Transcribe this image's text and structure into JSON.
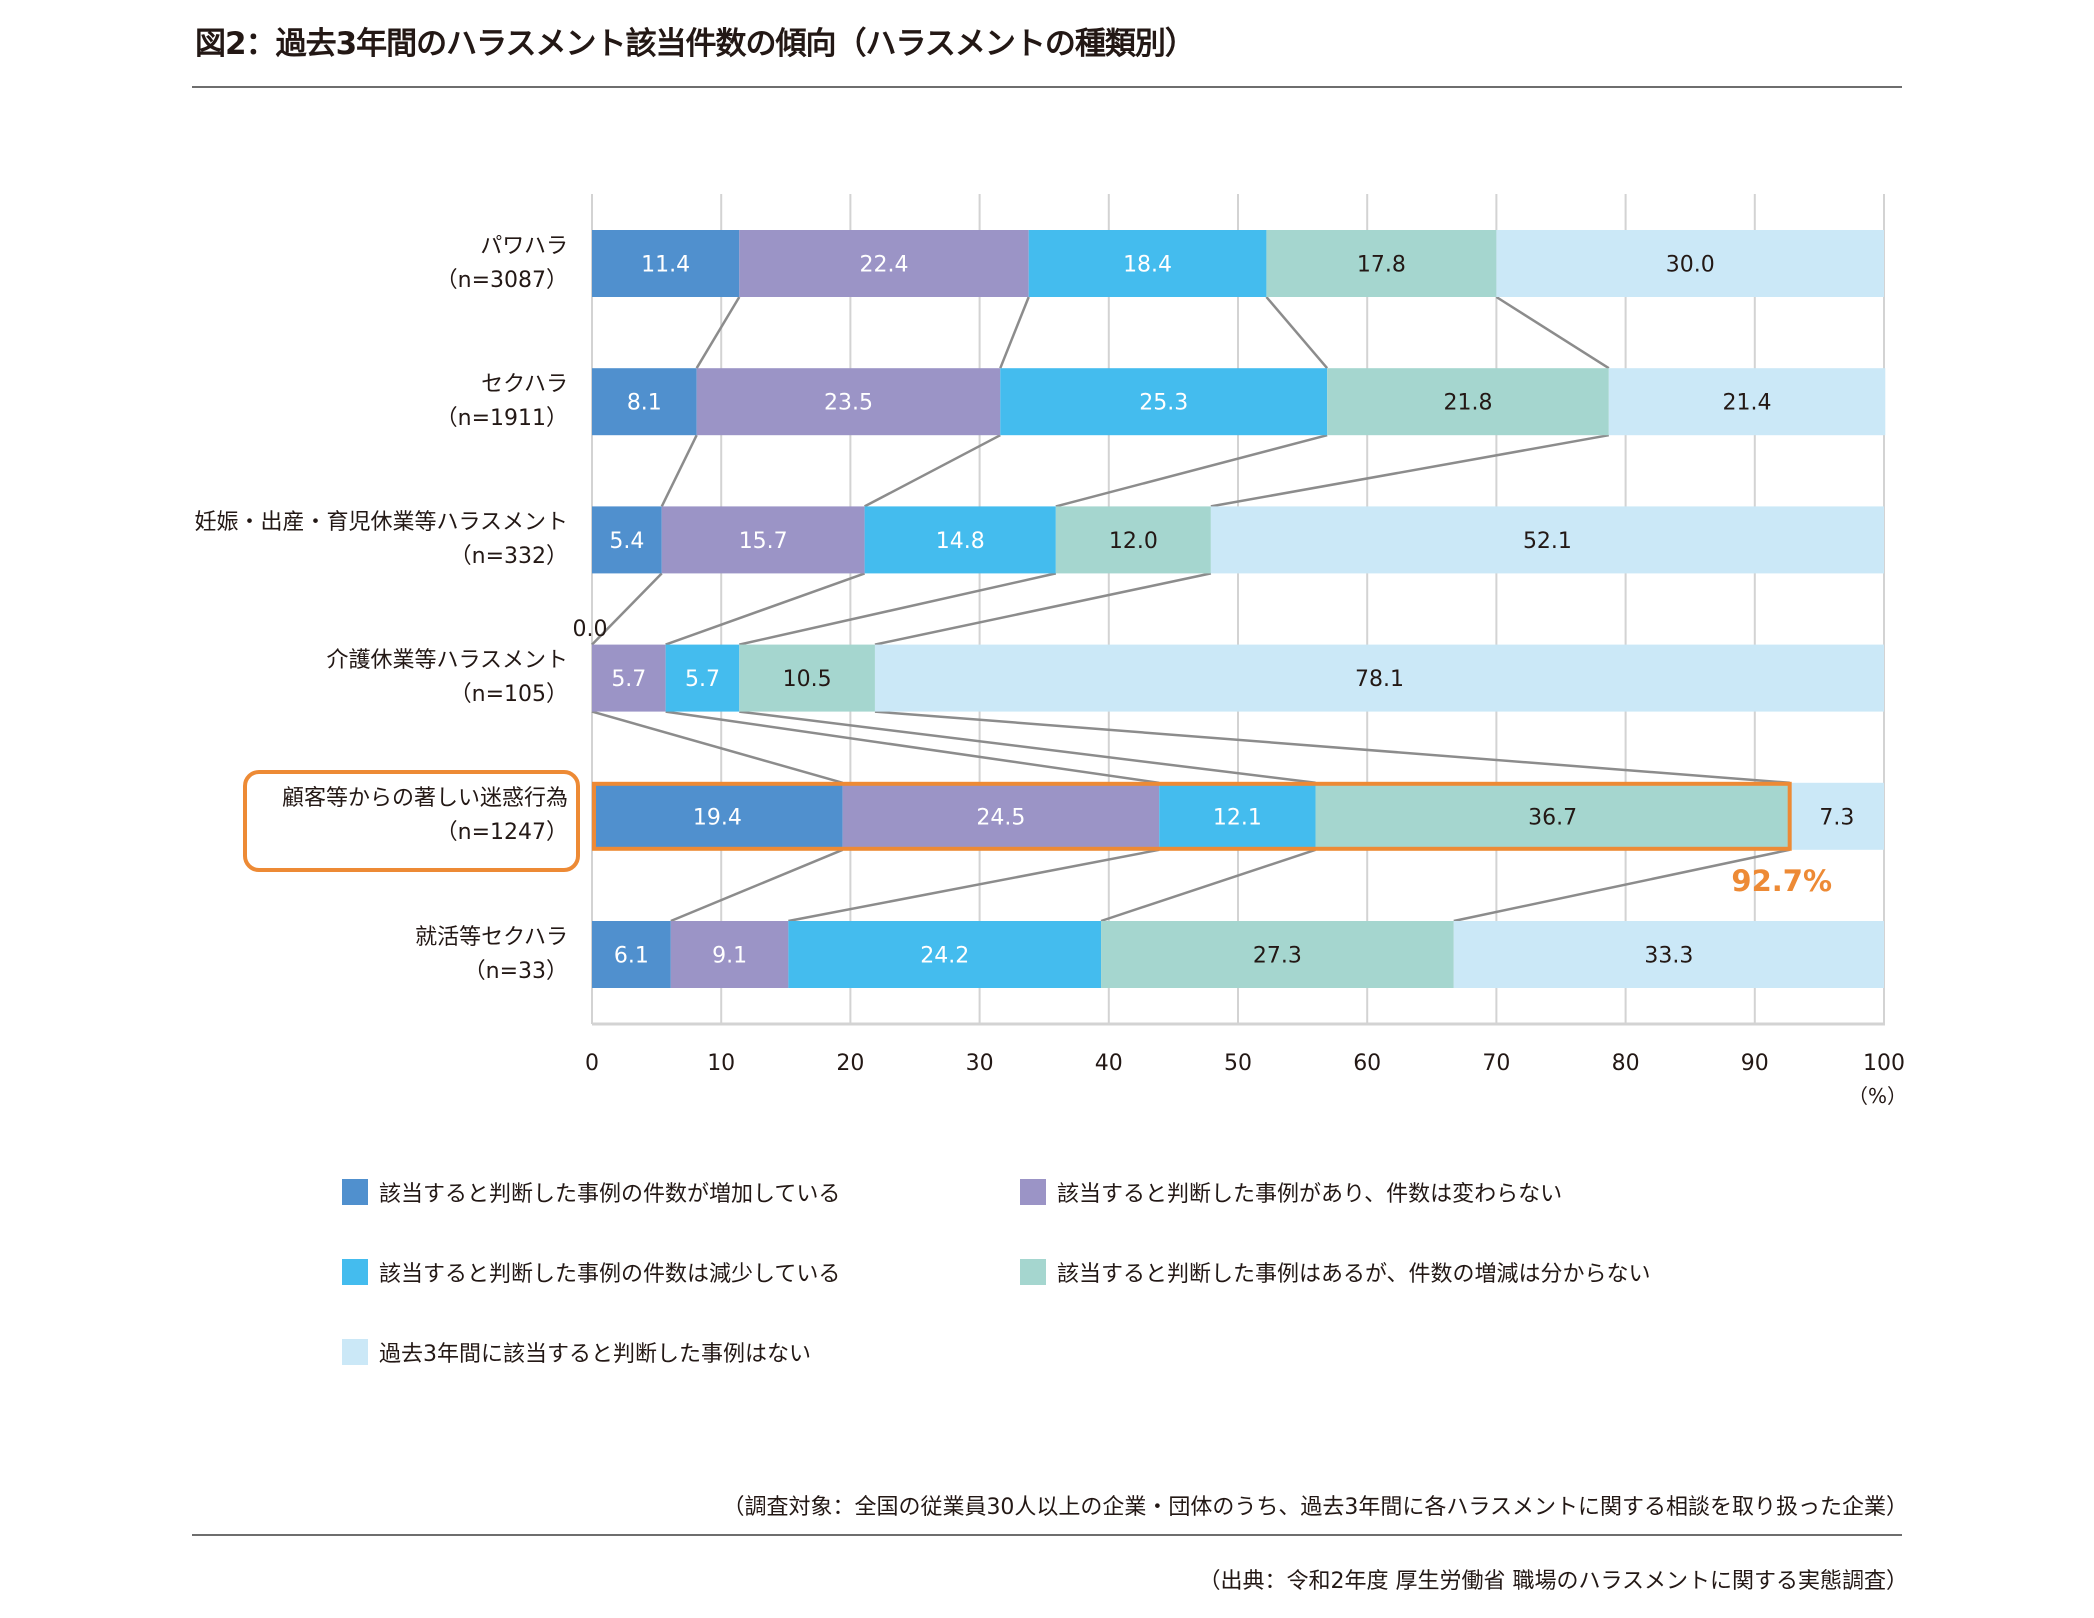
{
  "title": "図2：過去3年間のハラスメント該当件数の傾向（ハラスメントの種類別）",
  "highlight_label": "92.7%",
  "zero_annotation": "0.0",
  "axis_unit": "（%）",
  "footnote": "（調査対象：全国の従業員30人以上の企業・団体のうち、過去3年間に各ハラスメントに関する相談を取り扱った企業）",
  "source": "（出典：令和2年度 厚生労働省 職場のハラスメントに関する実態調査）",
  "colors": {
    "increase": "#5090CE",
    "unchanged": "#9B94C6",
    "decrease": "#44BCEE",
    "unknown": "#A5D6CF",
    "none": "#CBE8F7",
    "highlight": "#ED8A35",
    "connector": "#8C8C8C",
    "grid": "#D3D3D3"
  },
  "chart_data": {
    "type": "bar",
    "orientation": "horizontal",
    "stacked": true,
    "title": "図2：過去3年間のハラスメント該当件数の傾向（ハラスメントの種類別）",
    "xlabel": "（%）",
    "ylabel": "",
    "xlim": [
      0,
      100
    ],
    "xticks": [
      0,
      10,
      20,
      30,
      40,
      50,
      60,
      70,
      80,
      90,
      100
    ],
    "grid": true,
    "legend_position": "bottom",
    "categories": [
      {
        "name": "パワハラ",
        "n": "（n=3087）"
      },
      {
        "name": "セクハラ",
        "n": "（n=1911）"
      },
      {
        "name": "妊娠・出産・育児休業等ハラスメント",
        "n": "（n=332）"
      },
      {
        "name": "介護休業等ハラスメント",
        "n": "（n=105）"
      },
      {
        "name": "顧客等からの著しい迷惑行為",
        "n": "（n=1247）",
        "highlighted": true
      },
      {
        "name": "就活等セクハラ",
        "n": "（n=33）"
      }
    ],
    "series": [
      {
        "key": "increase",
        "name": "該当すると判断した事例の件数が増加している",
        "values": [
          11.4,
          8.1,
          5.4,
          0.0,
          19.4,
          6.1
        ],
        "label_color": "#ffffff"
      },
      {
        "key": "unchanged",
        "name": "該当すると判断した事例があり、件数は変わらない",
        "values": [
          22.4,
          23.5,
          15.7,
          5.7,
          24.5,
          9.1
        ],
        "label_color": "#ffffff"
      },
      {
        "key": "decrease",
        "name": "該当すると判断した事例の件数は減少している",
        "values": [
          18.4,
          25.3,
          14.8,
          5.7,
          12.1,
          24.2
        ],
        "label_color": "#ffffff"
      },
      {
        "key": "unknown",
        "name": "該当すると判断した事例はあるが、件数の増減は分からない",
        "values": [
          17.8,
          21.8,
          12.0,
          10.5,
          36.7,
          27.3
        ],
        "label_color": "#231815"
      },
      {
        "key": "none",
        "name": "過去3年間に該当すると判断した事例はない",
        "values": [
          30.0,
          21.4,
          52.1,
          78.1,
          7.3,
          33.3
        ],
        "label_color": "#231815"
      }
    ],
    "annotations": [
      {
        "text": "0.0",
        "category": "介護休業等ハラスメント",
        "series": "increase"
      },
      {
        "text": "92.7%",
        "category": "顧客等からの著しい迷惑行為",
        "note": "sum of first four series"
      }
    ]
  }
}
